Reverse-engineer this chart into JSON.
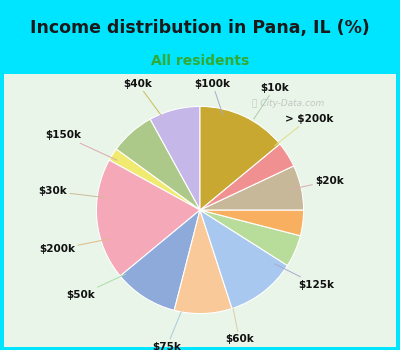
{
  "title": "Income distribution in Pana, IL (%)",
  "subtitle": "All residents",
  "title_color": "#1a1a1a",
  "subtitle_color": "#33aa33",
  "background_outer": "#00e5ff",
  "background_inner_top": "#e8f5e8",
  "background_inner_bottom": "#f0fff0",
  "labels": [
    "$100k",
    "$10k",
    "> $200k",
    "$20k",
    "$125k",
    "$60k",
    "$75k",
    "$50k",
    "$200k",
    "$30k",
    "$150k",
    "$40k"
  ],
  "values": [
    8,
    7,
    2,
    19,
    10,
    9,
    11,
    5,
    4,
    7,
    4,
    14
  ],
  "colors": [
    "#c5b8e8",
    "#adc98a",
    "#f0ea70",
    "#f4a8b8",
    "#8eaadb",
    "#f9c99a",
    "#a8c8f0",
    "#b8dc9a",
    "#f8b060",
    "#c8b89a",
    "#f09090",
    "#c8a830"
  ],
  "startangle": 90
}
